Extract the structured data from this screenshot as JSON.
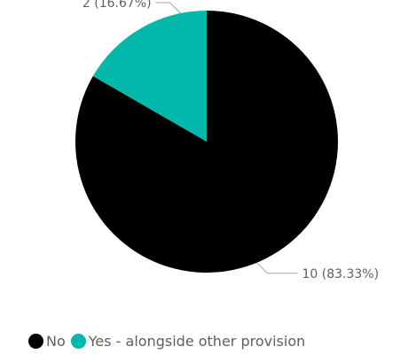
{
  "chart_data": {
    "type": "pie",
    "categories": [
      "No",
      "Yes - alongside other provision"
    ],
    "values": [
      10,
      2
    ],
    "data_labels": [
      "10 (83.33%)",
      "2 (16.67%)"
    ],
    "colors": [
      "#000000",
      "#01B8AA"
    ],
    "legend": {
      "position": "bottom",
      "entries": [
        "No",
        "Yes - alongside other provision"
      ]
    },
    "title": ""
  }
}
